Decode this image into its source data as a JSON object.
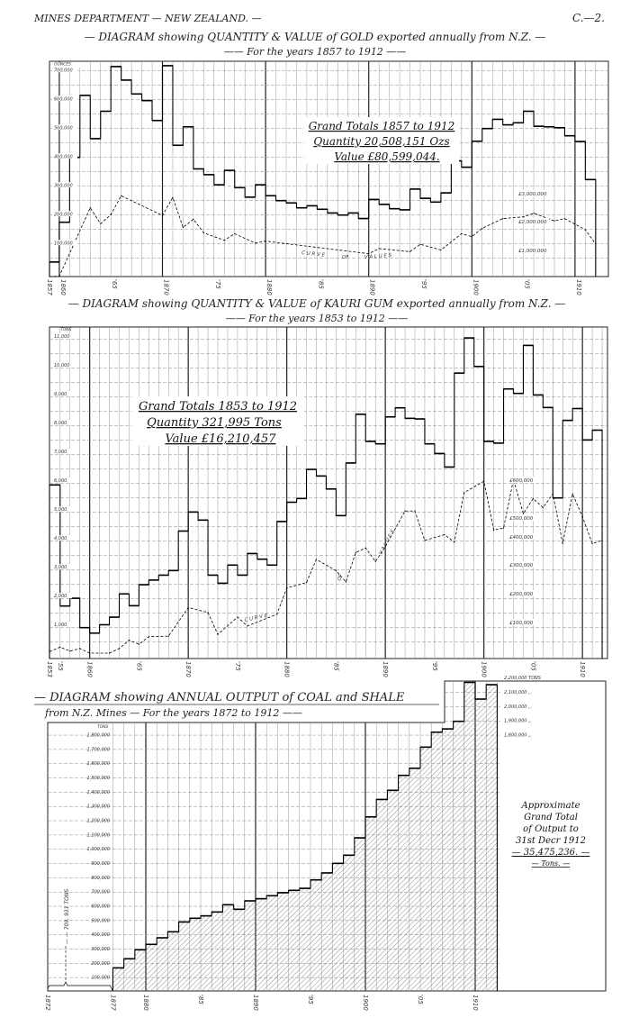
{
  "header": {
    "left": "MINES DEPARTMENT — NEW ZEALAND. —",
    "right": "C.—2."
  },
  "chart_data": [
    {
      "type": "bar",
      "style": "step",
      "title": "— DIAGRAM showing QUANTITY & VALUE of GOLD exported annually from N.Z. —",
      "subtitle": "—— For the years 1857 to 1912 ——",
      "y_unit": "OUNCES",
      "y_ticks": [
        "700,000",
        "600,000",
        "500,000",
        "400,000",
        "300,000",
        "200,000",
        "100,000"
      ],
      "y_tick_values": [
        700000,
        600000,
        500000,
        400000,
        300000,
        200000,
        100000
      ],
      "x_ticks": [
        "1857",
        "1860",
        "'65",
        "1870",
        "'75",
        "1880",
        "'85",
        "1890",
        "'95",
        "1900",
        "'05",
        "1910"
      ],
      "x_tick_years": [
        1857,
        1860,
        1865,
        1870,
        1875,
        1880,
        1885,
        1890,
        1895,
        1900,
        1905,
        1910
      ],
      "categories": [
        "1857-60",
        1861,
        1862,
        1863,
        1864,
        1865,
        1866,
        1867,
        1868,
        1869,
        1870,
        1871,
        1872,
        1873,
        1874,
        1875,
        1876,
        1877,
        1878,
        1879,
        1880,
        1881,
        1882,
        1883,
        1884,
        1885,
        1886,
        1887,
        1888,
        1889,
        1890,
        1891,
        1892,
        1893,
        1894,
        1895,
        1896,
        1897,
        1898,
        1899,
        1900,
        1901,
        1902,
        1903,
        1904,
        1905,
        1906,
        1907,
        1908,
        1909,
        1910,
        1911,
        1912
      ],
      "values": [
        37000,
        175000,
        400000,
        615000,
        465000,
        560000,
        715000,
        668000,
        620000,
        597000,
        528000,
        718000,
        442000,
        506000,
        360000,
        340000,
        305000,
        355000,
        295000,
        262000,
        305000,
        267000,
        250000,
        242000,
        225000,
        232000,
        220000,
        207000,
        200000,
        207000,
        188000,
        254000,
        237000,
        222000,
        218000,
        290000,
        258000,
        245000,
        277000,
        388000,
        366000,
        456000,
        500000,
        532000,
        513000,
        520000,
        560000,
        508000,
        506000,
        503000,
        475000,
        455000,
        323000
      ],
      "value_curve": {
        "label_parts": [
          "C U R V E",
          "OF",
          "V A L U E S"
        ],
        "unit": "£",
        "x": [
          1857,
          1860,
          1863,
          1864,
          1865,
          1866,
          1870,
          1871,
          1872,
          1873,
          1874,
          1876,
          1877,
          1879,
          1880,
          1890,
          1891,
          1894,
          1895,
          1897,
          1899,
          1900,
          1901,
          1903,
          1905,
          1906,
          1908,
          1909,
          1911,
          1912
        ],
        "values": [
          0,
          160000,
          2560000,
          2000000,
          2320000,
          2980000,
          2290000,
          2920000,
          1870000,
          2160000,
          1680000,
          1420000,
          1650000,
          1320000,
          1390000,
          950000,
          1130000,
          1020000,
          1280000,
          1080000,
          1650000,
          1550000,
          1840000,
          2180000,
          2240000,
          2370000,
          2100000,
          2180000,
          1790000,
          1290000
        ],
        "axis_labels": [
          "£3,000,000",
          "£2,000,000",
          "£1,000,000"
        ],
        "axis_values": [
          3000000,
          2000000,
          1000000
        ]
      },
      "totals": [
        "Grand Totals 1857 to 1912",
        "Quantity 20,508,151 Ozs",
        "Value £80,599,044."
      ],
      "grid": true
    },
    {
      "type": "bar",
      "style": "step",
      "title": "— DIAGRAM showing QUANTITY & VALUE of KAURI GUM exported annually from N.Z. —",
      "subtitle": "—— For the years 1853 to 1912 ——",
      "y_unit": "TONS",
      "y_ticks": [
        "11,000",
        "10,000",
        "9,000",
        "8,000",
        "7,000",
        "6,000",
        "5,000",
        "4,000",
        "3,000",
        "2,000",
        "1,000"
      ],
      "y_tick_values": [
        11000,
        10000,
        9000,
        8000,
        7000,
        6000,
        5000,
        4000,
        3000,
        2000,
        1000
      ],
      "x_ticks": [
        "1853",
        "'55",
        "1860",
        "'65",
        "1870",
        "'75",
        "1880",
        "'85",
        "1890",
        "'95",
        "1900",
        "'05",
        "1910"
      ],
      "x_tick_years": [
        1853,
        1855,
        1860,
        1865,
        1870,
        1875,
        1880,
        1885,
        1890,
        1895,
        1900,
        1905,
        1910
      ],
      "categories": [
        "1853-57",
        1858,
        1859,
        1860,
        1861,
        1862,
        1863,
        1864,
        1865,
        1866,
        1867,
        1868,
        1869,
        1870,
        1871,
        1872,
        1873,
        1874,
        1875,
        1876,
        1877,
        1878,
        1879,
        1880,
        1881,
        1882,
        1883,
        1884,
        1885,
        1886,
        1887,
        1888,
        1889,
        1890,
        1891,
        1892,
        1893,
        1894,
        1895,
        1896,
        1897,
        1898,
        1899,
        1900,
        1901,
        1902,
        1903,
        1904,
        1905,
        1906,
        1907,
        1908,
        1909,
        1910,
        1911,
        1912
      ],
      "values": [
        5950,
        1750,
        2020,
        1000,
        810,
        1100,
        1365,
        2170,
        1760,
        2490,
        2650,
        2820,
        2980,
        4350,
        5010,
        4730,
        2820,
        2540,
        3170,
        2820,
        3570,
        3375,
        3170,
        4680,
        5350,
        5480,
        6490,
        6260,
        5810,
        4885,
        6710,
        8400,
        7460,
        7375,
        8310,
        8625,
        8260,
        8240,
        7375,
        7040,
        6570,
        9830,
        11050,
        10060,
        7460,
        7400,
        9280,
        9125,
        10790,
        9070,
        8635,
        5500,
        8190,
        8600,
        7510,
        7850
      ],
      "value_curve": {
        "label_parts": [
          "C U R V E",
          "OF",
          "V A L U E S"
        ],
        "unit": "£",
        "x": [
          1853,
          1857,
          1858,
          1859,
          1860,
          1862,
          1863,
          1864,
          1865,
          1866,
          1868,
          1870,
          1872,
          1873,
          1875,
          1876,
          1879,
          1880,
          1882,
          1883,
          1885,
          1886,
          1887,
          1888,
          1889,
          1890,
          1892,
          1893,
          1894,
          1896,
          1897,
          1898,
          1900,
          1901,
          1902,
          1903,
          1904,
          1905,
          1906,
          1907,
          1908,
          1909,
          1910,
          1911,
          1912
        ],
        "values": [
          5000,
          21000,
          7000,
          16000,
          0,
          0,
          16000,
          45000,
          31000,
          57000,
          59000,
          158000,
          141000,
          65000,
          125000,
          94000,
          135000,
          226000,
          245000,
          325000,
          286000,
          247000,
          349000,
          365000,
          318000,
          370000,
          493000,
          493000,
          391000,
          411000,
          385000,
          557000,
          596000,
          427000,
          434000,
          602000,
          484000,
          536000,
          505000,
          552000,
          380000,
          552000,
          474000,
          380000,
          391000
        ],
        "axis_labels": [
          "£600,000",
          "£500,000",
          "£400,000",
          "£300,000",
          "£200,000",
          "£100,000"
        ],
        "axis_values": [
          600000,
          500000,
          400000,
          300000,
          200000,
          100000
        ]
      },
      "totals": [
        "Grand Totals 1853 to 1912",
        "Quantity 321,995 Tons",
        "Value £16,210,457"
      ],
      "grid": true
    },
    {
      "type": "bar",
      "style": "step-hatched",
      "title": "— DIAGRAM showing ANNUAL OUTPUT of COAL and SHALE",
      "subtitle": "from N.Z. Mines — For the years 1872 to 1912 ——",
      "y_unit": "TONS",
      "y_ticks": [
        "1,800,000",
        "1,700,000",
        "1,600,000",
        "1,500,000",
        "1,400,000",
        "1,300,000",
        "1,200,000",
        "1,100,000",
        "1,000,000",
        "900,000",
        "800,000",
        "700,000",
        "600,000",
        "500,000",
        "400,000",
        "300,000",
        "200,000",
        "100,000"
      ],
      "y_tick_values": [
        1800000,
        1700000,
        1600000,
        1500000,
        1400000,
        1300000,
        1200000,
        1100000,
        1000000,
        900000,
        800000,
        700000,
        600000,
        500000,
        400000,
        300000,
        200000,
        100000
      ],
      "y_ticks_right": [
        "2,200,000 TONS",
        "2,100,000  ,,",
        "2,000,000  ,,",
        "1,900,000  ,,",
        "1,800,000  ,,"
      ],
      "y_tick_right_values": [
        2200000,
        2100000,
        2000000,
        1900000,
        1800000
      ],
      "x_ticks": [
        "1872",
        "1877",
        "1880",
        "'85",
        "1890",
        "'95",
        "1900",
        "'05",
        "1910"
      ],
      "x_tick_years": [
        1872,
        1877,
        1880,
        1885,
        1890,
        1895,
        1900,
        1905,
        1910
      ],
      "categories": [
        1878,
        1879,
        1880,
        1881,
        1882,
        1883,
        1884,
        1885,
        1886,
        1887,
        1888,
        1889,
        1890,
        1891,
        1892,
        1893,
        1894,
        1895,
        1896,
        1897,
        1898,
        1899,
        1900,
        1901,
        1902,
        1903,
        1904,
        1905,
        1906,
        1907,
        1908,
        1909,
        1910,
        1911,
        1912
      ],
      "values": [
        168000,
        232000,
        295000,
        333000,
        379000,
        421000,
        490000,
        516000,
        533000,
        560000,
        611000,
        579000,
        638000,
        653000,
        674000,
        695000,
        712000,
        726000,
        785000,
        834000,
        901000,
        958000,
        1080000,
        1227000,
        1349000,
        1413000,
        1518000,
        1568000,
        1716000,
        1821000,
        1844000,
        1897000,
        2170000,
        2053000,
        2154000
      ],
      "pre_period": {
        "from": 1872,
        "to": 1877,
        "total": 709931,
        "label": "— — 709, 931 TONS"
      },
      "totals": [
        "Approximate",
        "Grand Total",
        "of Output to",
        "31st Decr 1912",
        "— 35,475,236. —",
        "— Tons. —"
      ],
      "grid": true
    }
  ]
}
